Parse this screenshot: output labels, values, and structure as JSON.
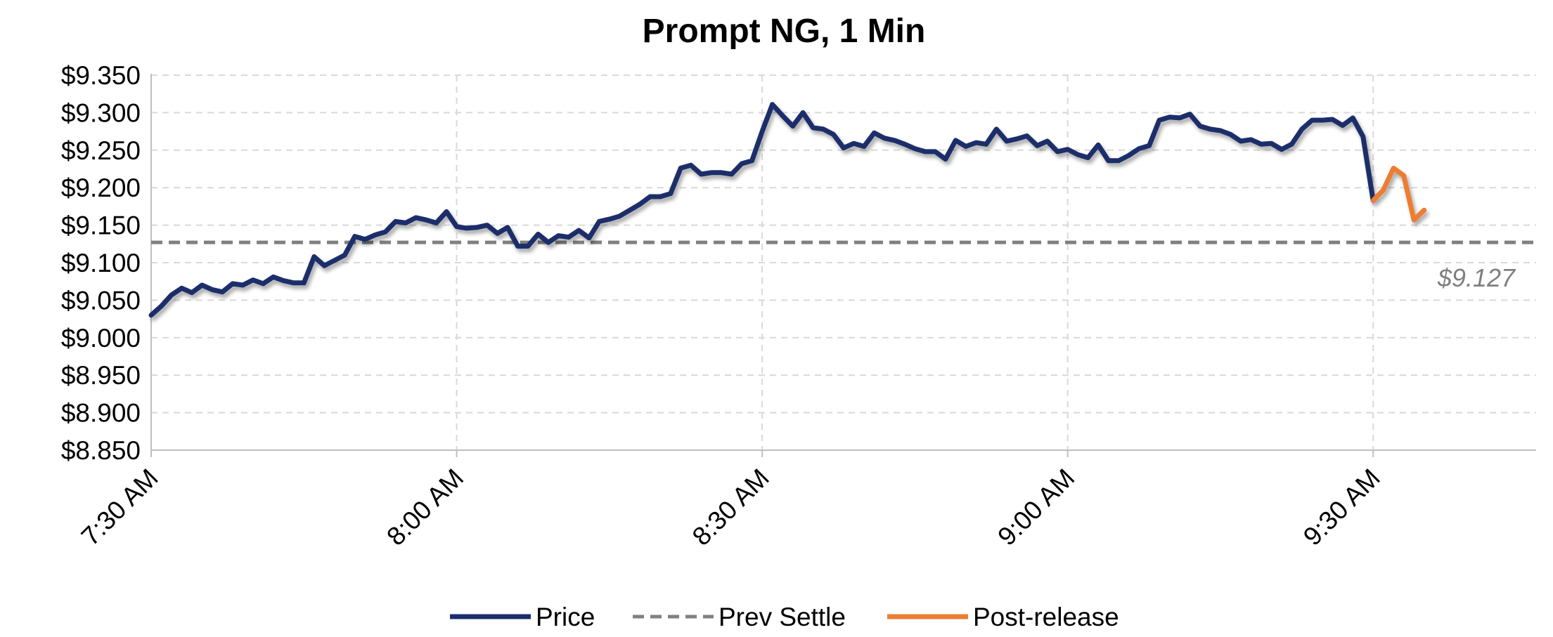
{
  "chart_data": {
    "type": "line",
    "title": "Prompt NG, 1 Min",
    "xlabel": "",
    "ylabel": "",
    "x_tick_labels": [
      "7:30 AM",
      "8:00 AM",
      "8:30 AM",
      "9:00 AM",
      "9:30 AM"
    ],
    "x_tick_minutes": [
      0,
      30,
      60,
      90,
      120
    ],
    "y_tick_labels": [
      "$9.350",
      "$9.300",
      "$9.250",
      "$9.200",
      "$9.150",
      "$9.100",
      "$9.050",
      "$9.000",
      "$8.950",
      "$8.900",
      "$8.850"
    ],
    "ylim": [
      8.85,
      9.35
    ],
    "xlim_minutes": [
      0,
      136
    ],
    "grid": true,
    "legend_position": "bottom",
    "reference_line": {
      "name": "Prev Settle",
      "value": 9.127,
      "label": "$9.127",
      "color": "#808080"
    },
    "series": [
      {
        "name": "Price",
        "color": "#1b2d6b",
        "x_minutes": [
          0,
          1,
          2,
          3,
          4,
          5,
          6,
          7,
          8,
          9,
          10,
          11,
          12,
          13,
          14,
          15,
          16,
          17,
          18,
          19,
          20,
          21,
          22,
          23,
          24,
          25,
          26,
          27,
          28,
          29,
          30,
          31,
          32,
          33,
          34,
          35,
          36,
          37,
          38,
          39,
          40,
          41,
          42,
          43,
          44,
          45,
          46,
          47,
          48,
          49,
          50,
          51,
          52,
          53,
          54,
          55,
          56,
          57,
          58,
          59,
          60,
          61,
          62,
          63,
          64,
          65,
          66,
          67,
          68,
          69,
          70,
          71,
          72,
          73,
          74,
          75,
          76,
          77,
          78,
          79,
          80,
          81,
          82,
          83,
          84,
          85,
          86,
          87,
          88,
          89,
          90,
          91,
          92,
          93,
          94,
          95,
          96,
          97,
          98,
          99,
          100,
          101,
          102,
          103,
          104,
          105,
          106,
          107,
          108,
          109,
          110,
          111,
          112,
          113,
          114,
          115,
          116,
          117,
          118,
          119,
          120
        ],
        "values": [
          9.03,
          9.042,
          9.057,
          9.066,
          9.06,
          9.07,
          9.064,
          9.061,
          9.072,
          9.07,
          9.077,
          9.072,
          9.081,
          9.076,
          9.073,
          9.073,
          9.108,
          9.096,
          9.103,
          9.11,
          9.135,
          9.131,
          9.137,
          9.141,
          9.155,
          9.153,
          9.16,
          9.157,
          9.153,
          9.168,
          9.148,
          9.146,
          9.147,
          9.15,
          9.139,
          9.147,
          9.122,
          9.122,
          9.138,
          9.127,
          9.136,
          9.134,
          9.143,
          9.133,
          9.155,
          9.158,
          9.162,
          9.17,
          9.178,
          9.188,
          9.188,
          9.192,
          9.226,
          9.23,
          9.218,
          9.22,
          9.22,
          9.218,
          9.232,
          9.236,
          9.275,
          9.311,
          9.296,
          9.282,
          9.3,
          9.28,
          9.278,
          9.271,
          9.253,
          9.259,
          9.255,
          9.273,
          9.266,
          9.263,
          9.258,
          9.252,
          9.248,
          9.248,
          9.238,
          9.263,
          9.255,
          9.26,
          9.258,
          9.278,
          9.262,
          9.265,
          9.269,
          9.256,
          9.262,
          9.248,
          9.251,
          9.244,
          9.24,
          9.257,
          9.236,
          9.236,
          9.243,
          9.252,
          9.256,
          9.29,
          9.294,
          9.293,
          9.298,
          9.282,
          9.278,
          9.276,
          9.271,
          9.262,
          9.264,
          9.258,
          9.259,
          9.251,
          9.258,
          9.278,
          9.29,
          9.29,
          9.291,
          9.283,
          9.293,
          9.268,
          9.183
        ]
      },
      {
        "name": "Post-release",
        "color": "#ed7d31",
        "x_minutes": [
          120,
          121,
          122,
          123,
          124,
          125
        ],
        "values": [
          9.183,
          9.197,
          9.226,
          9.216,
          9.157,
          9.17
        ]
      }
    ]
  }
}
